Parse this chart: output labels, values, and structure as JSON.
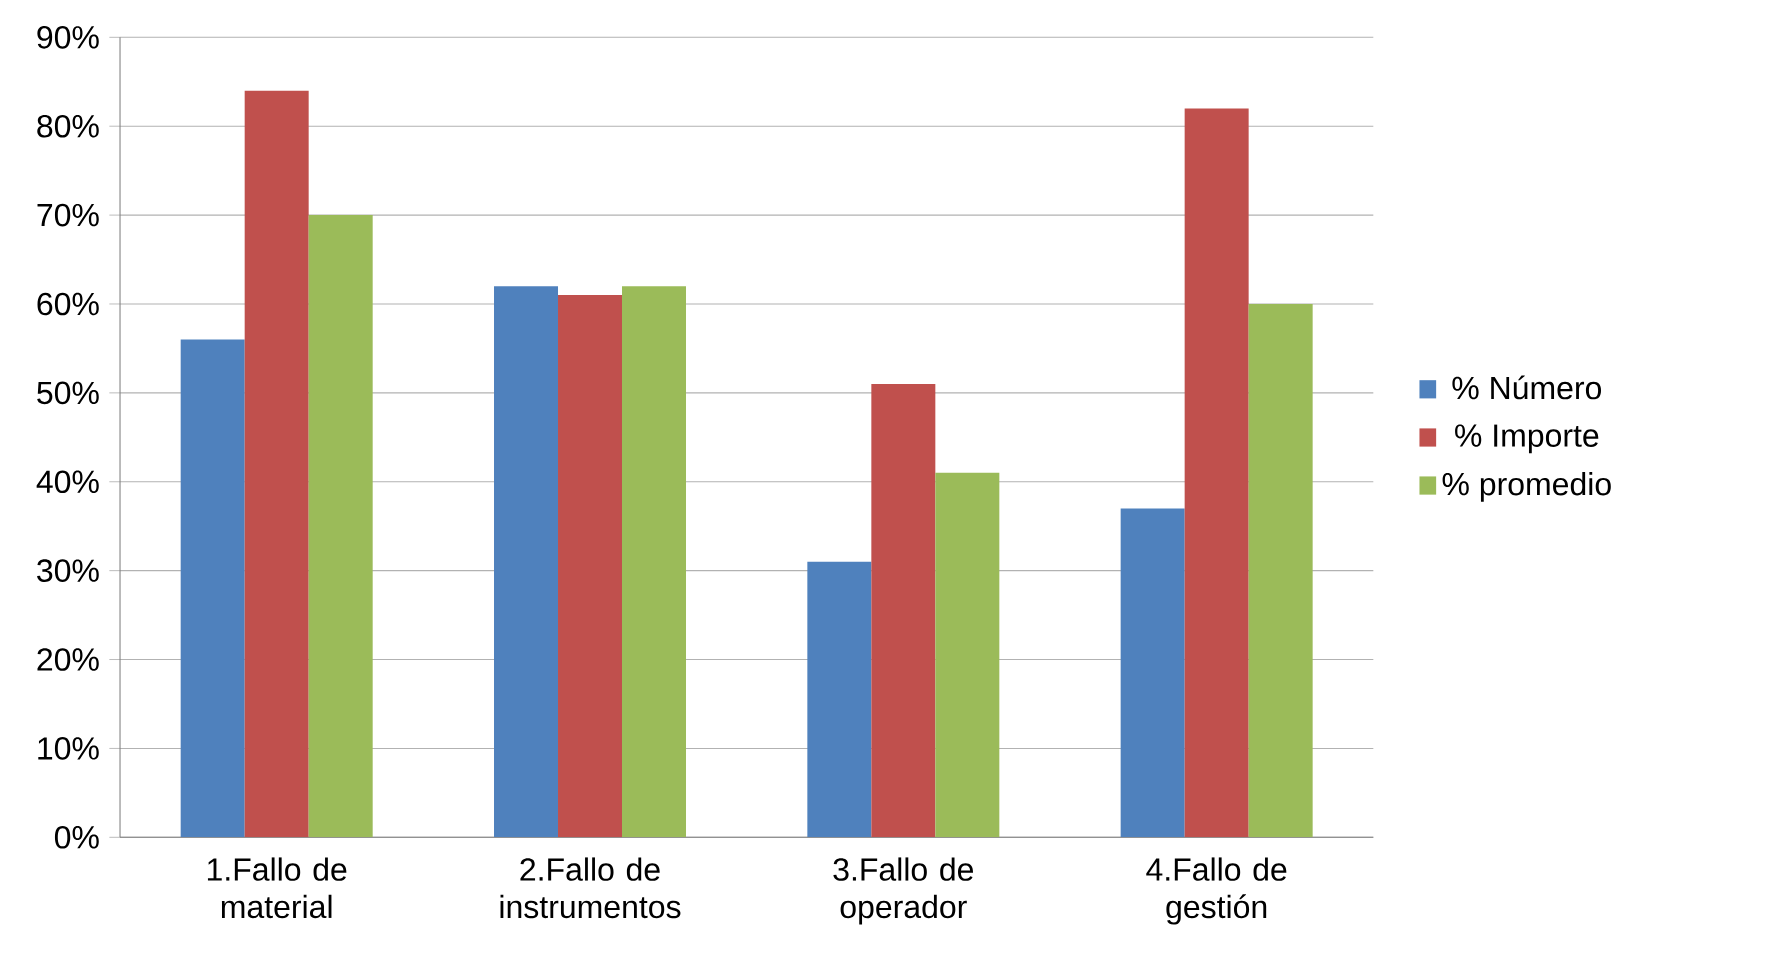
{
  "chart_data": {
    "type": "bar",
    "categories": [
      "1.Fallo de material",
      "2.Fallo de instrumentos",
      "3.Fallo de operador",
      "4.Fallo de gestión"
    ],
    "series": [
      {
        "name": "% Número",
        "color": "#4f81bd",
        "values": [
          56,
          62,
          31,
          37
        ]
      },
      {
        "name": "% Importe",
        "color": "#c0504d",
        "values": [
          84,
          61,
          51,
          82
        ]
      },
      {
        "name": "% promedio",
        "color": "#9bbb59",
        "values": [
          70,
          62,
          41,
          60
        ]
      }
    ],
    "ylim": [
      0,
      90
    ],
    "yticks": [
      {
        "value": 0,
        "label": "0%"
      },
      {
        "value": 10,
        "label": "10%"
      },
      {
        "value": 20,
        "label": "20%"
      },
      {
        "value": 30,
        "label": "30%"
      },
      {
        "value": 40,
        "label": "40%"
      },
      {
        "value": 50,
        "label": "50%"
      },
      {
        "value": 60,
        "label": "60%"
      },
      {
        "value": 70,
        "label": "70%"
      },
      {
        "value": 80,
        "label": "80%"
      },
      {
        "value": 90,
        "label": "90%"
      }
    ],
    "grid": "y",
    "legend": "right"
  }
}
